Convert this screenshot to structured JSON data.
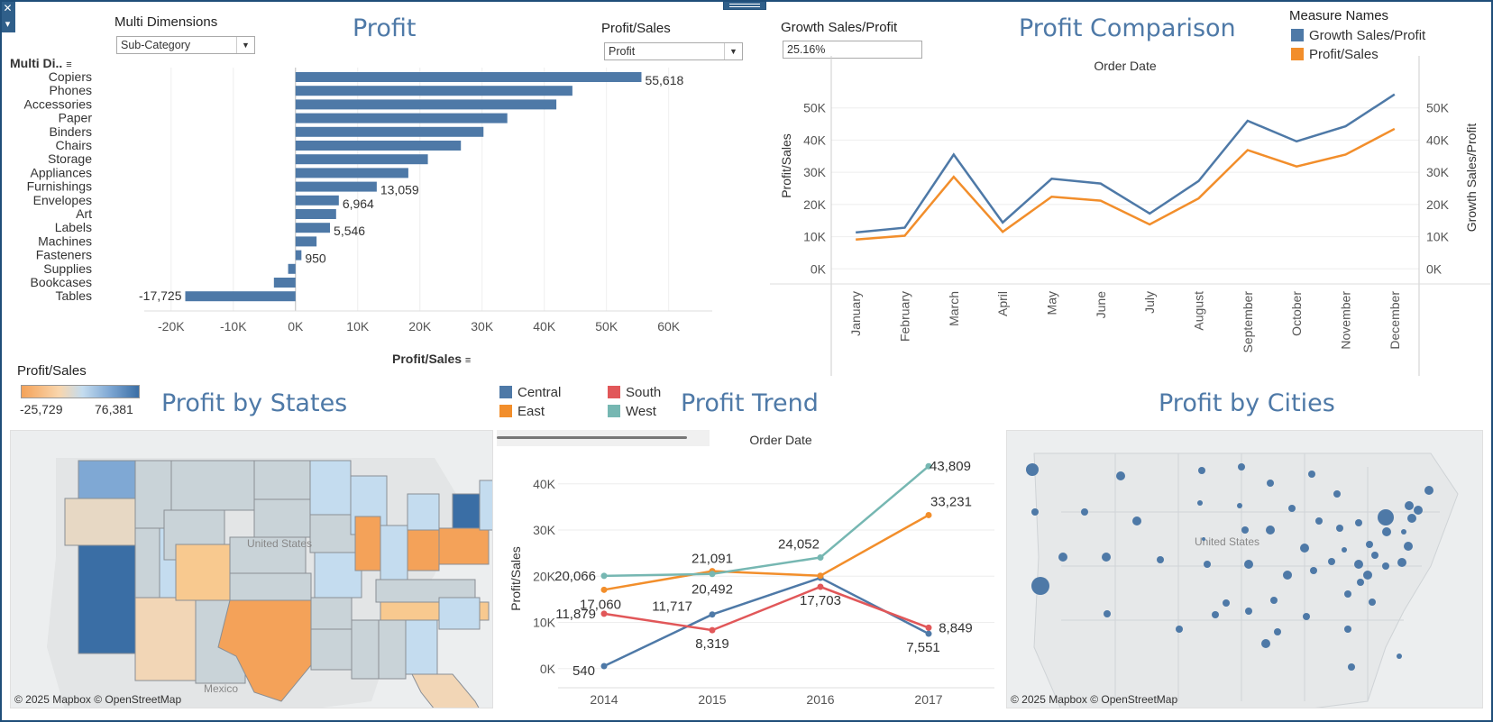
{
  "topleft": {
    "close_glyph": "✕",
    "menu_glyph": "▾"
  },
  "profit_panel": {
    "title": "Profit",
    "dim_control_label": "Multi Dimensions",
    "dim_control_value": "Sub-Category",
    "measure_control_label": "Profit/Sales",
    "measure_control_value": "Profit",
    "row_header": "Multi Di..",
    "x_axis_title": "Profit/Sales"
  },
  "comparison_panel": {
    "title": "Profit  Comparison",
    "growth_label": "Growth Sales/Profit",
    "growth_value": "25.16%",
    "legend_title": "Measure Names",
    "axis_header": "Order Date",
    "left_axis_title": "Profit/Sales",
    "right_axis_title": "Growth Sales/Profit"
  },
  "states_panel": {
    "title": "Profit by States",
    "legend_title": "Profit/Sales",
    "legend_min": "-25,729",
    "legend_max": "76,381",
    "map_country_label": "United States",
    "map_mexico_label": "Mexico",
    "attribution": "© 2025 Mapbox © OpenStreetMap"
  },
  "trend_panel": {
    "title": "Profit Trend",
    "axis_header": "Order Date",
    "y_axis_title": "Profit/Sales"
  },
  "cities_panel": {
    "title": "Profit by Cities",
    "map_country_label": "United States",
    "attribution": "© 2025 Mapbox © OpenStreetMap"
  },
  "colors": {
    "bar": "#4e79a7",
    "central": "#4e79a7",
    "east": "#f28e2b",
    "south": "#e15759",
    "west": "#76b7b2",
    "orange_scale": "#f4a259",
    "blue_scale": "#3a6ea5"
  },
  "chart_data": [
    {
      "id": "profit-bar",
      "type": "bar",
      "orientation": "horizontal",
      "categories": [
        "Copiers",
        "Phones",
        "Accessories",
        "Paper",
        "Binders",
        "Chairs",
        "Storage",
        "Appliances",
        "Furnishings",
        "Envelopes",
        "Art",
        "Labels",
        "Machines",
        "Fasteners",
        "Supplies",
        "Bookcases",
        "Tables"
      ],
      "values": [
        55618,
        44516,
        41937,
        34054,
        30222,
        26590,
        21279,
        18138,
        13059,
        6964,
        6528,
        5546,
        3385,
        950,
        -1189,
        -3473,
        -17725
      ],
      "data_labels": [
        "55,618",
        "",
        "",
        "",
        "",
        "",
        "",
        "",
        "13,059",
        "6,964",
        "",
        "5,546",
        "",
        "950",
        "",
        "",
        "-17,725"
      ],
      "xticks": [
        -20000,
        -10000,
        0,
        10000,
        20000,
        30000,
        40000,
        50000,
        60000
      ],
      "xtick_labels": [
        "-20K",
        "-10K",
        "0K",
        "10K",
        "20K",
        "30K",
        "40K",
        "50K",
        "60K"
      ],
      "xlim": [
        -22000,
        67000
      ]
    },
    {
      "id": "profit-comparison",
      "type": "line",
      "categories": [
        "January",
        "February",
        "March",
        "April",
        "May",
        "June",
        "July",
        "August",
        "September",
        "October",
        "November",
        "December"
      ],
      "series": [
        {
          "name": "Growth Sales/Profit",
          "color": "#4e79a7",
          "values": [
            11300,
            12800,
            35500,
            14400,
            28000,
            26500,
            17200,
            27300,
            46000,
            39600,
            44300,
            54200
          ]
        },
        {
          "name": "Profit/Sales",
          "color": "#f28e2b",
          "values": [
            9100,
            10300,
            28600,
            11500,
            22400,
            21200,
            13800,
            21900,
            36900,
            31800,
            35500,
            43500
          ]
        }
      ],
      "yticks": [
        0,
        10000,
        20000,
        30000,
        40000,
        50000
      ],
      "ytick_labels": [
        "0K",
        "10K",
        "20K",
        "30K",
        "40K",
        "50K"
      ],
      "ylim": [
        -3000,
        60000
      ]
    },
    {
      "id": "profit-trend",
      "type": "line",
      "categories": [
        "2014",
        "2015",
        "2016",
        "2017"
      ],
      "series": [
        {
          "name": "Central",
          "color": "#4e79a7",
          "values": [
            540,
            11717,
            19650,
            7551
          ],
          "labels": [
            "540",
            "11,717",
            "",
            "7,551"
          ]
        },
        {
          "name": "East",
          "color": "#f28e2b",
          "values": [
            17060,
            21091,
            20100,
            33231
          ],
          "labels": [
            "17,060",
            "21,091",
            "",
            "33,231"
          ]
        },
        {
          "name": "South",
          "color": "#e15759",
          "values": [
            11879,
            8319,
            17703,
            8849
          ],
          "labels": [
            "11,879",
            "8,319",
            "17,703",
            "8,849"
          ]
        },
        {
          "name": "West",
          "color": "#76b7b2",
          "values": [
            20066,
            20492,
            24052,
            43809
          ],
          "labels": [
            "20,066",
            "20,492",
            "24,052",
            "43,809"
          ]
        }
      ],
      "yticks": [
        0,
        10000,
        20000,
        30000,
        40000
      ],
      "ytick_labels": [
        "0K",
        "10K",
        "20K",
        "30K",
        "40K"
      ],
      "ylim": [
        -2000,
        46000
      ]
    }
  ]
}
